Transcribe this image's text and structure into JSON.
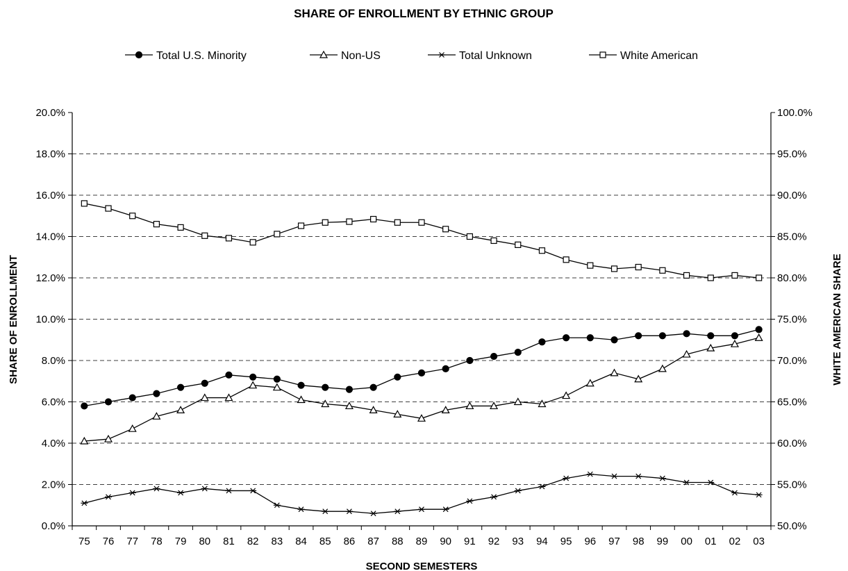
{
  "chart_data": {
    "type": "line",
    "title": "SHARE OF ENROLLMENT BY ETHNIC GROUP",
    "xlabel": "SECOND SEMESTERS",
    "ylabel": "SHARE OF ENROLLMENT",
    "y2label": "WHITE AMERICAN SHARE",
    "ylim": [
      0,
      20
    ],
    "y2lim": [
      50,
      100
    ],
    "grid": true,
    "legend_position": "top",
    "categories": [
      "75",
      "76",
      "77",
      "78",
      "79",
      "80",
      "81",
      "82",
      "83",
      "84",
      "85",
      "86",
      "87",
      "88",
      "89",
      "90",
      "91",
      "92",
      "93",
      "94",
      "95",
      "96",
      "97",
      "98",
      "99",
      "00",
      "01",
      "02",
      "03"
    ],
    "y_ticks": [
      "0.0%",
      "2.0%",
      "4.0%",
      "6.0%",
      "8.0%",
      "10.0%",
      "12.0%",
      "14.0%",
      "16.0%",
      "18.0%",
      "20.0%"
    ],
    "y2_ticks": [
      "50.0%",
      "55.0%",
      "60.0%",
      "65.0%",
      "70.0%",
      "75.0%",
      "80.0%",
      "85.0%",
      "90.0%",
      "95.0%",
      "100.0%"
    ],
    "series": [
      {
        "name": "Total U.S.  Minority",
        "axis": "left",
        "marker": "filled-circle",
        "values": [
          5.8,
          6.0,
          6.2,
          6.4,
          6.7,
          6.9,
          7.3,
          7.2,
          7.1,
          6.8,
          6.7,
          6.6,
          6.7,
          7.2,
          7.4,
          7.6,
          8.0,
          8.2,
          8.4,
          8.9,
          9.1,
          9.1,
          9.0,
          9.2,
          9.2,
          9.3,
          9.2,
          9.2,
          9.5
        ]
      },
      {
        "name": "Non-US",
        "axis": "left",
        "marker": "open-triangle",
        "values": [
          4.1,
          4.2,
          4.7,
          5.3,
          5.6,
          6.2,
          6.2,
          6.8,
          6.7,
          6.1,
          5.9,
          5.8,
          5.6,
          5.4,
          5.2,
          5.6,
          5.8,
          5.8,
          6.0,
          5.9,
          6.3,
          6.9,
          7.4,
          7.1,
          7.6,
          8.3,
          8.6,
          8.8,
          9.1
        ]
      },
      {
        "name": "Total Unknown",
        "axis": "left",
        "marker": "asterisk",
        "values": [
          1.1,
          1.4,
          1.6,
          1.8,
          1.6,
          1.8,
          1.7,
          1.7,
          1.0,
          0.8,
          0.7,
          0.7,
          0.6,
          0.7,
          0.8,
          0.8,
          1.2,
          1.4,
          1.7,
          1.9,
          2.3,
          2.5,
          2.4,
          2.4,
          2.3,
          2.1,
          2.1,
          1.6,
          1.5
        ]
      },
      {
        "name": "White American",
        "axis": "right",
        "marker": "open-square",
        "values": [
          89.0,
          88.4,
          87.5,
          86.5,
          86.1,
          85.1,
          84.8,
          84.3,
          85.3,
          86.3,
          86.7,
          86.8,
          87.1,
          86.7,
          86.7,
          85.9,
          85.0,
          84.5,
          84.0,
          83.3,
          82.2,
          81.5,
          81.1,
          81.3,
          80.9,
          80.3,
          80.0,
          80.3,
          80.0
        ]
      }
    ]
  }
}
